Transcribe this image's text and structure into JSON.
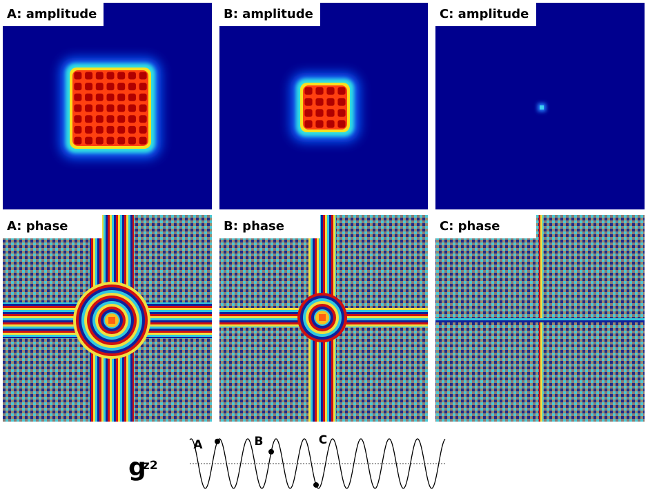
{
  "panels": [
    {
      "label": "A: amplitude"
    },
    {
      "label": "B: amplitude"
    },
    {
      "label": "C: amplitude"
    },
    {
      "label": "A: phase"
    },
    {
      "label": "B: phase"
    },
    {
      "label": "C: phase"
    }
  ],
  "wave": {
    "symbol": "g",
    "subscript": "z2",
    "points": [
      "A",
      "B",
      "C"
    ]
  }
}
